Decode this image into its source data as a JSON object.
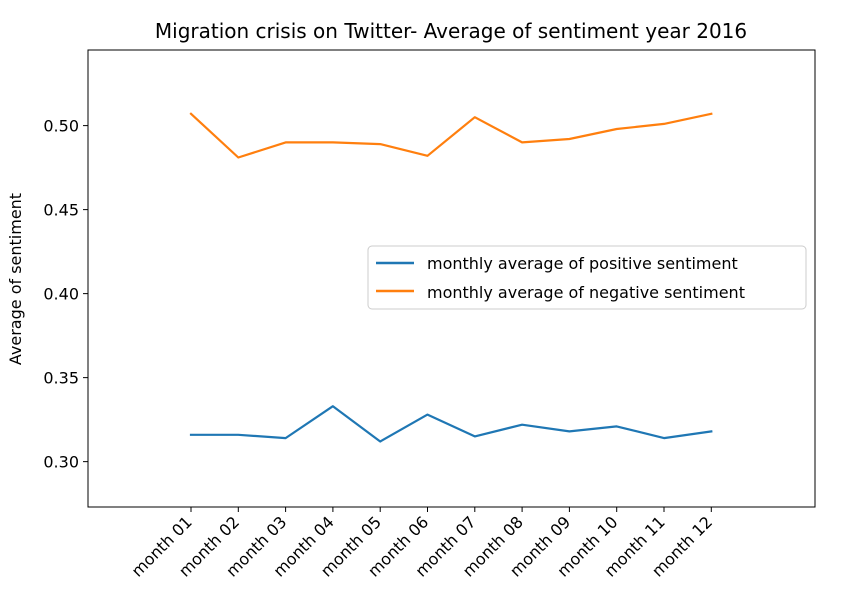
{
  "chart_data": {
    "type": "line",
    "title": "Migration crisis on Twitter- Average of sentiment year 2016",
    "xlabel": "",
    "ylabel": "Average of sentiment",
    "categories": [
      "month 01",
      "month 02",
      "month 03",
      "month 04",
      "month 05",
      "month 06",
      "month 07",
      "month 08",
      "month 09",
      "month 10",
      "month 11",
      "month 12"
    ],
    "ylim": [
      0.273,
      0.545
    ],
    "yticks": [
      0.3,
      0.35,
      0.4,
      0.45,
      0.5
    ],
    "ytick_labels": [
      "0.30",
      "0.35",
      "0.40",
      "0.45",
      "0.50"
    ],
    "grid": false,
    "legend_position": "center-right",
    "series": [
      {
        "name": "monthly average of positive sentiment",
        "color": "#1f77b4",
        "values": [
          0.316,
          0.316,
          0.314,
          0.333,
          0.312,
          0.328,
          0.315,
          0.322,
          0.318,
          0.321,
          0.314,
          0.318
        ]
      },
      {
        "name": "monthly average of negative sentiment",
        "color": "#ff7f0e",
        "values": [
          0.507,
          0.481,
          0.49,
          0.49,
          0.489,
          0.482,
          0.505,
          0.49,
          0.492,
          0.498,
          0.501,
          0.507
        ]
      }
    ]
  }
}
